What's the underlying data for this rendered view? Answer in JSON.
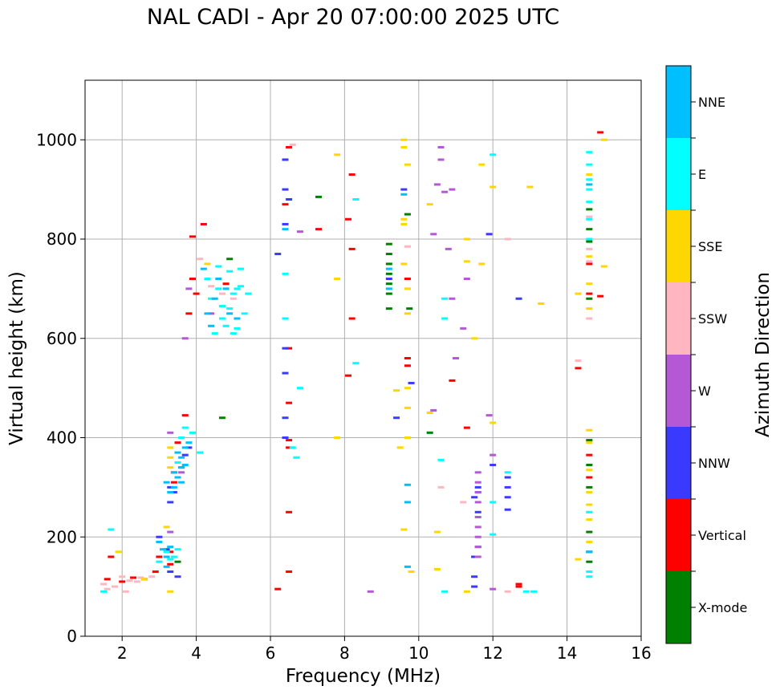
{
  "chart_data": {
    "type": "scatter",
    "title": "NAL CADI - Apr 20 07:00:00 2025 UTC",
    "xlabel": "Frequency (MHz)",
    "ylabel": "Virtual height (km)",
    "xlim": [
      1,
      16
    ],
    "ylim": [
      0,
      1120
    ],
    "xticks": [
      2,
      4,
      6,
      8,
      10,
      12,
      14,
      16
    ],
    "yticks": [
      0,
      200,
      400,
      600,
      800,
      1000
    ],
    "grid": true,
    "colorbar": {
      "label": "Azimuth Direction",
      "categories": [
        {
          "name": "X-mode",
          "color": "#008000"
        },
        {
          "name": "Vertical",
          "color": "#ff0000"
        },
        {
          "name": "NNW",
          "color": "#3a3aff"
        },
        {
          "name": "W",
          "color": "#b458d6"
        },
        {
          "name": "SSW",
          "color": "#ffb6c1"
        },
        {
          "name": "SSE",
          "color": "#ffd700"
        },
        {
          "name": "E",
          "color": "#00ffff"
        },
        {
          "name": "NNE",
          "color": "#00bfff"
        }
      ]
    },
    "series": [
      {
        "name": "X-mode",
        "points": [
          [
            9.2,
            790
          ],
          [
            9.2,
            770
          ],
          [
            9.2,
            750
          ],
          [
            9.2,
            730
          ],
          [
            9.2,
            710
          ],
          [
            9.2,
            690
          ],
          [
            9.2,
            660
          ],
          [
            9.7,
            850
          ],
          [
            9.75,
            660
          ],
          [
            14.6,
            860
          ],
          [
            14.6,
            820
          ],
          [
            14.6,
            795
          ],
          [
            14.6,
            680
          ],
          [
            14.6,
            395
          ],
          [
            14.6,
            345
          ],
          [
            14.6,
            300
          ],
          [
            14.6,
            210
          ],
          [
            14.6,
            150
          ],
          [
            7.3,
            885
          ],
          [
            4.7,
            440
          ],
          [
            4.9,
            760
          ],
          [
            10.3,
            410
          ],
          [
            3.5,
            150
          ]
        ]
      },
      {
        "name": "Vertical",
        "points": [
          [
            6.5,
            985
          ],
          [
            6.4,
            870
          ],
          [
            7.3,
            820
          ],
          [
            8.2,
            930
          ],
          [
            8.1,
            840
          ],
          [
            8.2,
            780
          ],
          [
            8.2,
            640
          ],
          [
            8.1,
            525
          ],
          [
            6.5,
            580
          ],
          [
            6.5,
            470
          ],
          [
            6.5,
            395
          ],
          [
            6.5,
            380
          ],
          [
            6.5,
            250
          ],
          [
            6.5,
            130
          ],
          [
            6.2,
            95
          ],
          [
            4.8,
            710
          ],
          [
            3.9,
            805
          ],
          [
            3.9,
            720
          ],
          [
            3.8,
            650
          ],
          [
            4.0,
            690
          ],
          [
            4.2,
            830
          ],
          [
            3.4,
            310
          ],
          [
            3.3,
            170
          ],
          [
            3.3,
            145
          ],
          [
            3.7,
            445
          ],
          [
            3.5,
            390
          ],
          [
            3.4,
            330
          ],
          [
            1.6,
            115
          ],
          [
            2.0,
            110
          ],
          [
            2.3,
            118
          ],
          [
            2.6,
            115
          ],
          [
            3.0,
            160
          ],
          [
            2.9,
            130
          ],
          [
            1.7,
            160
          ],
          [
            9.7,
            560
          ],
          [
            9.7,
            545
          ],
          [
            9.7,
            720
          ],
          [
            10.9,
            515
          ],
          [
            11.3,
            420
          ],
          [
            14.3,
            540
          ],
          [
            14.6,
            365
          ],
          [
            14.6,
            320
          ],
          [
            14.6,
            750
          ],
          [
            14.6,
            690
          ],
          [
            14.9,
            685
          ],
          [
            14.9,
            1015
          ],
          [
            12.7,
            100
          ],
          [
            12.7,
            105
          ]
        ]
      },
      {
        "name": "NNW",
        "points": [
          [
            6.4,
            830
          ],
          [
            6.4,
            960
          ],
          [
            6.4,
            900
          ],
          [
            6.5,
            880
          ],
          [
            6.2,
            770
          ],
          [
            6.4,
            580
          ],
          [
            6.4,
            530
          ],
          [
            6.4,
            440
          ],
          [
            6.4,
            400
          ],
          [
            3.3,
            300
          ],
          [
            3.5,
            320
          ],
          [
            3.6,
            340
          ],
          [
            3.7,
            365
          ],
          [
            3.4,
            290
          ],
          [
            3.3,
            270
          ],
          [
            3.8,
            380
          ],
          [
            9.2,
            720
          ],
          [
            9.8,
            510
          ],
          [
            9.4,
            440
          ],
          [
            9.6,
            900
          ],
          [
            11.6,
            300
          ],
          [
            11.6,
            290
          ],
          [
            11.5,
            280
          ],
          [
            11.6,
            250
          ],
          [
            12.4,
            320
          ],
          [
            12.4,
            300
          ],
          [
            12.4,
            280
          ],
          [
            12.4,
            255
          ],
          [
            11.9,
            810
          ],
          [
            14.6,
            170
          ],
          [
            12.0,
            345
          ],
          [
            11.6,
            180
          ],
          [
            11.5,
            160
          ],
          [
            11.5,
            120
          ],
          [
            11.5,
            100
          ],
          [
            3.0,
            200
          ],
          [
            3.2,
            175
          ],
          [
            3.3,
            130
          ],
          [
            3.5,
            120
          ],
          [
            12.7,
            680
          ]
        ]
      },
      {
        "name": "W",
        "points": [
          [
            10.6,
            985
          ],
          [
            10.6,
            960
          ],
          [
            10.7,
            895
          ],
          [
            10.9,
            900
          ],
          [
            10.4,
            810
          ],
          [
            10.5,
            910
          ],
          [
            10.9,
            680
          ],
          [
            11.3,
            720
          ],
          [
            11.2,
            620
          ],
          [
            11.6,
            330
          ],
          [
            11.6,
            310
          ],
          [
            11.6,
            290
          ],
          [
            11.6,
            270
          ],
          [
            11.6,
            240
          ],
          [
            11.6,
            220
          ],
          [
            11.6,
            200
          ],
          [
            11.6,
            180
          ],
          [
            11.6,
            160
          ],
          [
            11.9,
            445
          ],
          [
            12.0,
            365
          ],
          [
            12.0,
            95
          ],
          [
            8.7,
            90
          ],
          [
            10.4,
            455
          ],
          [
            6.8,
            815
          ],
          [
            11.0,
            560
          ],
          [
            3.8,
            700
          ],
          [
            3.7,
            600
          ],
          [
            4.4,
            650
          ],
          [
            3.3,
            210
          ],
          [
            3.3,
            410
          ],
          [
            3.6,
            330
          ],
          [
            10.8,
            780
          ]
        ]
      },
      {
        "name": "SSW",
        "points": [
          [
            10.6,
            300
          ],
          [
            11.2,
            270
          ],
          [
            14.6,
            845
          ],
          [
            14.6,
            780
          ],
          [
            14.6,
            755
          ],
          [
            14.6,
            640
          ],
          [
            14.3,
            555
          ],
          [
            12.4,
            800
          ],
          [
            2.0,
            120
          ],
          [
            2.2,
            112
          ],
          [
            2.4,
            110
          ],
          [
            2.5,
            118
          ],
          [
            2.8,
            120
          ],
          [
            1.8,
            100
          ],
          [
            1.5,
            105
          ],
          [
            1.6,
            95
          ],
          [
            2.1,
            90
          ],
          [
            4.1,
            760
          ],
          [
            4.4,
            705
          ],
          [
            4.7,
            690
          ],
          [
            5.0,
            680
          ],
          [
            6.6,
            990
          ],
          [
            12.4,
            90
          ],
          [
            9.7,
            785
          ]
        ]
      },
      {
        "name": "SSE",
        "points": [
          [
            9.6,
            1000
          ],
          [
            9.6,
            985
          ],
          [
            9.7,
            950
          ],
          [
            9.6,
            840
          ],
          [
            9.6,
            830
          ],
          [
            9.6,
            750
          ],
          [
            9.7,
            700
          ],
          [
            9.7,
            650
          ],
          [
            9.7,
            500
          ],
          [
            9.7,
            460
          ],
          [
            9.7,
            400
          ],
          [
            9.5,
            380
          ],
          [
            9.6,
            215
          ],
          [
            9.8,
            130
          ],
          [
            9.4,
            495
          ],
          [
            7.8,
            970
          ],
          [
            7.8,
            720
          ],
          [
            7.8,
            400
          ],
          [
            10.3,
            870
          ],
          [
            10.3,
            450
          ],
          [
            10.5,
            210
          ],
          [
            10.5,
            135
          ],
          [
            11.3,
            90
          ],
          [
            11.3,
            800
          ],
          [
            11.3,
            755
          ],
          [
            11.5,
            600
          ],
          [
            11.7,
            950
          ],
          [
            11.7,
            750
          ],
          [
            12.0,
            905
          ],
          [
            12.0,
            430
          ],
          [
            13.0,
            905
          ],
          [
            13.3,
            670
          ],
          [
            14.3,
            690
          ],
          [
            14.6,
            930
          ],
          [
            14.6,
            765
          ],
          [
            14.6,
            710
          ],
          [
            14.6,
            660
          ],
          [
            14.6,
            415
          ],
          [
            14.6,
            390
          ],
          [
            14.6,
            335
          ],
          [
            14.6,
            290
          ],
          [
            14.6,
            265
          ],
          [
            14.6,
            235
          ],
          [
            14.6,
            190
          ],
          [
            14.3,
            155
          ],
          [
            15.0,
            745
          ],
          [
            15.0,
            1000
          ],
          [
            3.3,
            380
          ],
          [
            3.3,
            360
          ],
          [
            3.3,
            340
          ],
          [
            3.2,
            220
          ],
          [
            2.6,
            115
          ],
          [
            1.9,
            170
          ],
          [
            3.3,
            90
          ],
          [
            4.3,
            750
          ]
        ]
      },
      {
        "name": "E",
        "points": [
          [
            4.4,
            680
          ],
          [
            4.6,
            700
          ],
          [
            4.7,
            640
          ],
          [
            4.9,
            660
          ],
          [
            5.0,
            690
          ],
          [
            5.1,
            620
          ],
          [
            5.2,
            705
          ],
          [
            5.3,
            650
          ],
          [
            4.5,
            610
          ],
          [
            4.8,
            625
          ],
          [
            5.0,
            610
          ],
          [
            5.2,
            740
          ],
          [
            4.3,
            720
          ],
          [
            4.6,
            745
          ],
          [
            4.9,
            735
          ],
          [
            5.1,
            700
          ],
          [
            5.4,
            690
          ],
          [
            4.7,
            665
          ],
          [
            3.6,
            400
          ],
          [
            3.7,
            420
          ],
          [
            3.9,
            410
          ],
          [
            4.1,
            370
          ],
          [
            3.5,
            350
          ],
          [
            3.2,
            170
          ],
          [
            3.4,
            160
          ],
          [
            3.5,
            175
          ],
          [
            3.3,
            155
          ],
          [
            3.0,
            150
          ],
          [
            1.7,
            215
          ],
          [
            1.5,
            90
          ],
          [
            6.4,
            640
          ],
          [
            6.4,
            730
          ],
          [
            6.7,
            360
          ],
          [
            6.6,
            380
          ],
          [
            6.8,
            500
          ],
          [
            8.3,
            550
          ],
          [
            8.3,
            880
          ],
          [
            10.7,
            680
          ],
          [
            10.7,
            640
          ],
          [
            10.6,
            355
          ],
          [
            10.7,
            90
          ],
          [
            12.0,
            970
          ],
          [
            12.0,
            270
          ],
          [
            12.0,
            205
          ],
          [
            12.4,
            330
          ],
          [
            12.9,
            90
          ],
          [
            13.1,
            90
          ],
          [
            14.6,
            975
          ],
          [
            14.6,
            950
          ],
          [
            14.6,
            920
          ],
          [
            14.6,
            900
          ],
          [
            14.6,
            875
          ],
          [
            14.6,
            840
          ],
          [
            14.6,
            800
          ],
          [
            14.6,
            250
          ],
          [
            14.6,
            130
          ],
          [
            14.6,
            120
          ]
        ]
      },
      {
        "name": "NNE",
        "points": [
          [
            3.2,
            310
          ],
          [
            3.3,
            290
          ],
          [
            3.4,
            300
          ],
          [
            3.5,
            320
          ],
          [
            3.6,
            340
          ],
          [
            3.6,
            360
          ],
          [
            3.7,
            380
          ],
          [
            3.8,
            390
          ],
          [
            3.5,
            370
          ],
          [
            3.6,
            310
          ],
          [
            3.4,
            330
          ],
          [
            3.7,
            345
          ],
          [
            3.0,
            190
          ],
          [
            3.1,
            175
          ],
          [
            3.2,
            160
          ],
          [
            3.3,
            180
          ],
          [
            3.2,
            140
          ],
          [
            4.3,
            650
          ],
          [
            4.5,
            680
          ],
          [
            4.8,
            700
          ],
          [
            4.6,
            720
          ],
          [
            4.9,
            650
          ],
          [
            5.1,
            640
          ],
          [
            4.4,
            625
          ],
          [
            4.2,
            740
          ],
          [
            6.4,
            820
          ],
          [
            9.2,
            740
          ],
          [
            9.2,
            700
          ],
          [
            9.7,
            305
          ],
          [
            9.7,
            270
          ],
          [
            9.7,
            140
          ],
          [
            9.6,
            890
          ],
          [
            14.6,
            910
          ],
          [
            14.6,
            170
          ]
        ]
      }
    ]
  }
}
